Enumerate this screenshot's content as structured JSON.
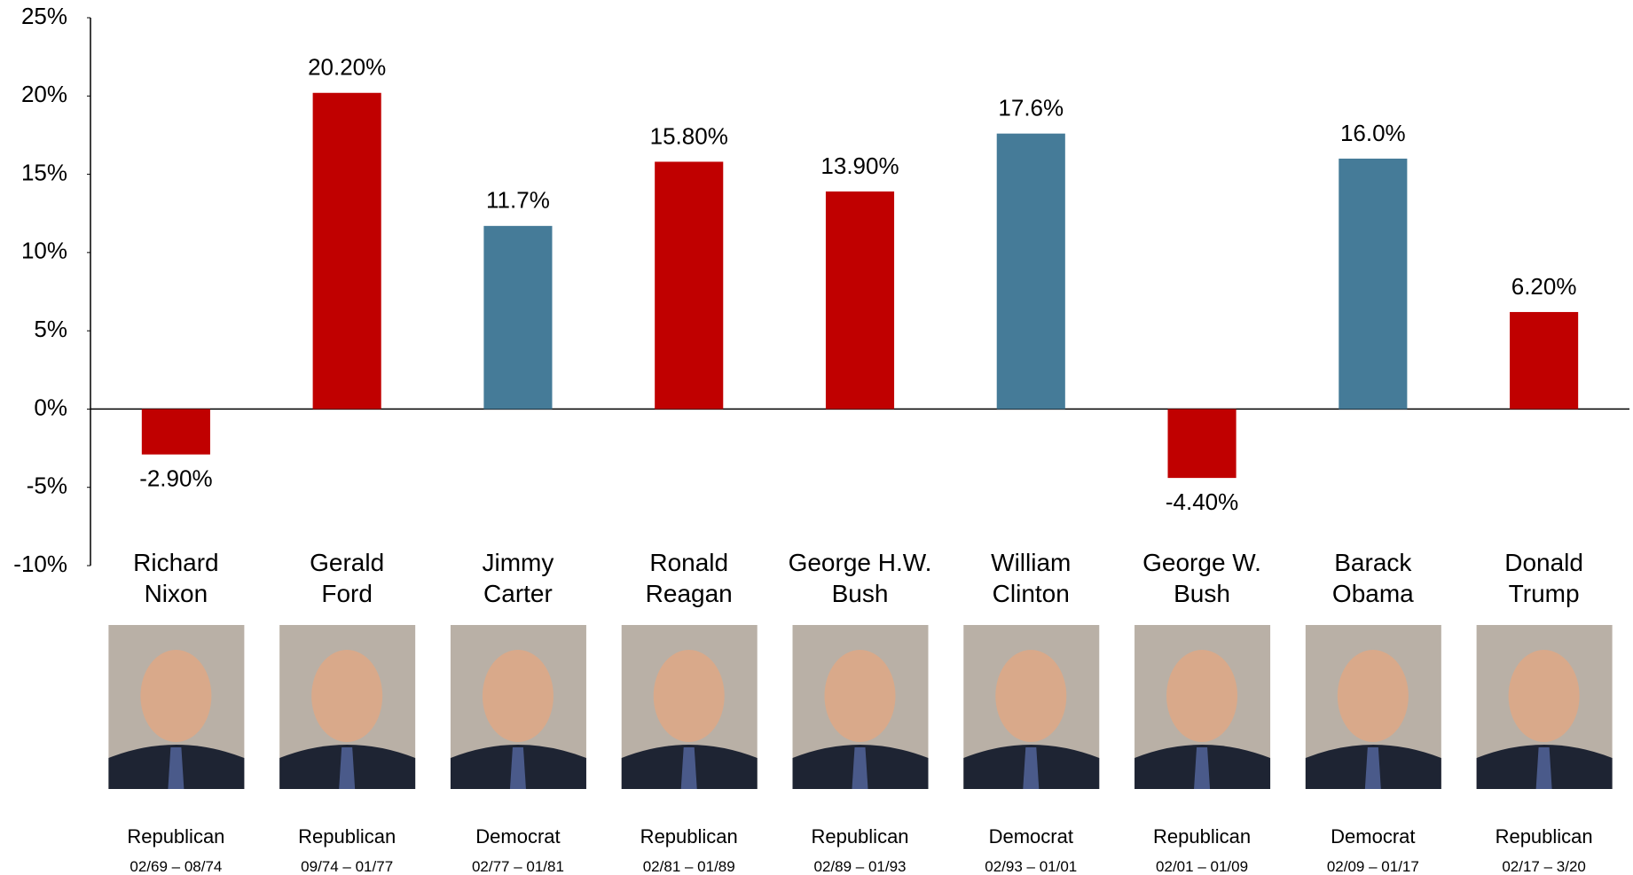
{
  "chart_data": {
    "type": "bar",
    "categories": [
      "Richard\nNixon",
      "Gerald\nFord",
      "Jimmy\nCarter",
      "Ronald\nReagan",
      "George H.W.\nBush",
      "William\nClinton",
      "George W.\nBush",
      "Barack\nObama",
      "Donald\nTrump"
    ],
    "values": [
      -2.9,
      20.2,
      11.7,
      15.8,
      13.9,
      17.6,
      -4.4,
      16.0,
      6.2
    ],
    "value_labels": [
      "-2.90%",
      "20.20%",
      "11.7%",
      "15.80%",
      "13.90%",
      "17.6%",
      "-4.40%",
      "16.0%",
      "6.20%"
    ],
    "colors": [
      "#c00000",
      "#c00000",
      "#457b98",
      "#c00000",
      "#c00000",
      "#457b98",
      "#c00000",
      "#457b98",
      "#c00000"
    ],
    "parties": [
      "Republican",
      "Republican",
      "Democrat",
      "Republican",
      "Republican",
      "Democrat",
      "Republican",
      "Democrat",
      "Republican"
    ],
    "terms": [
      "02/69 – 08/74",
      "09/74 – 01/77",
      "02/77 – 01/81",
      "02/81 – 01/89",
      "02/89 – 01/93",
      "02/93 – 01/01",
      "02/01 – 01/09",
      "02/09 – 01/17",
      "02/17 – 3/20"
    ],
    "ylim": [
      -10,
      25
    ],
    "yticks": [
      {
        "value": -10,
        "label": "-10%"
      },
      {
        "value": -5,
        "label": "-5%"
      },
      {
        "value": 0,
        "label": "0%"
      },
      {
        "value": 5,
        "label": "5%"
      },
      {
        "value": 10,
        "label": "10%"
      },
      {
        "value": 15,
        "label": "15%"
      },
      {
        "value": 20,
        "label": "20%"
      },
      {
        "value": 25,
        "label": "25%"
      }
    ],
    "grid": false
  }
}
